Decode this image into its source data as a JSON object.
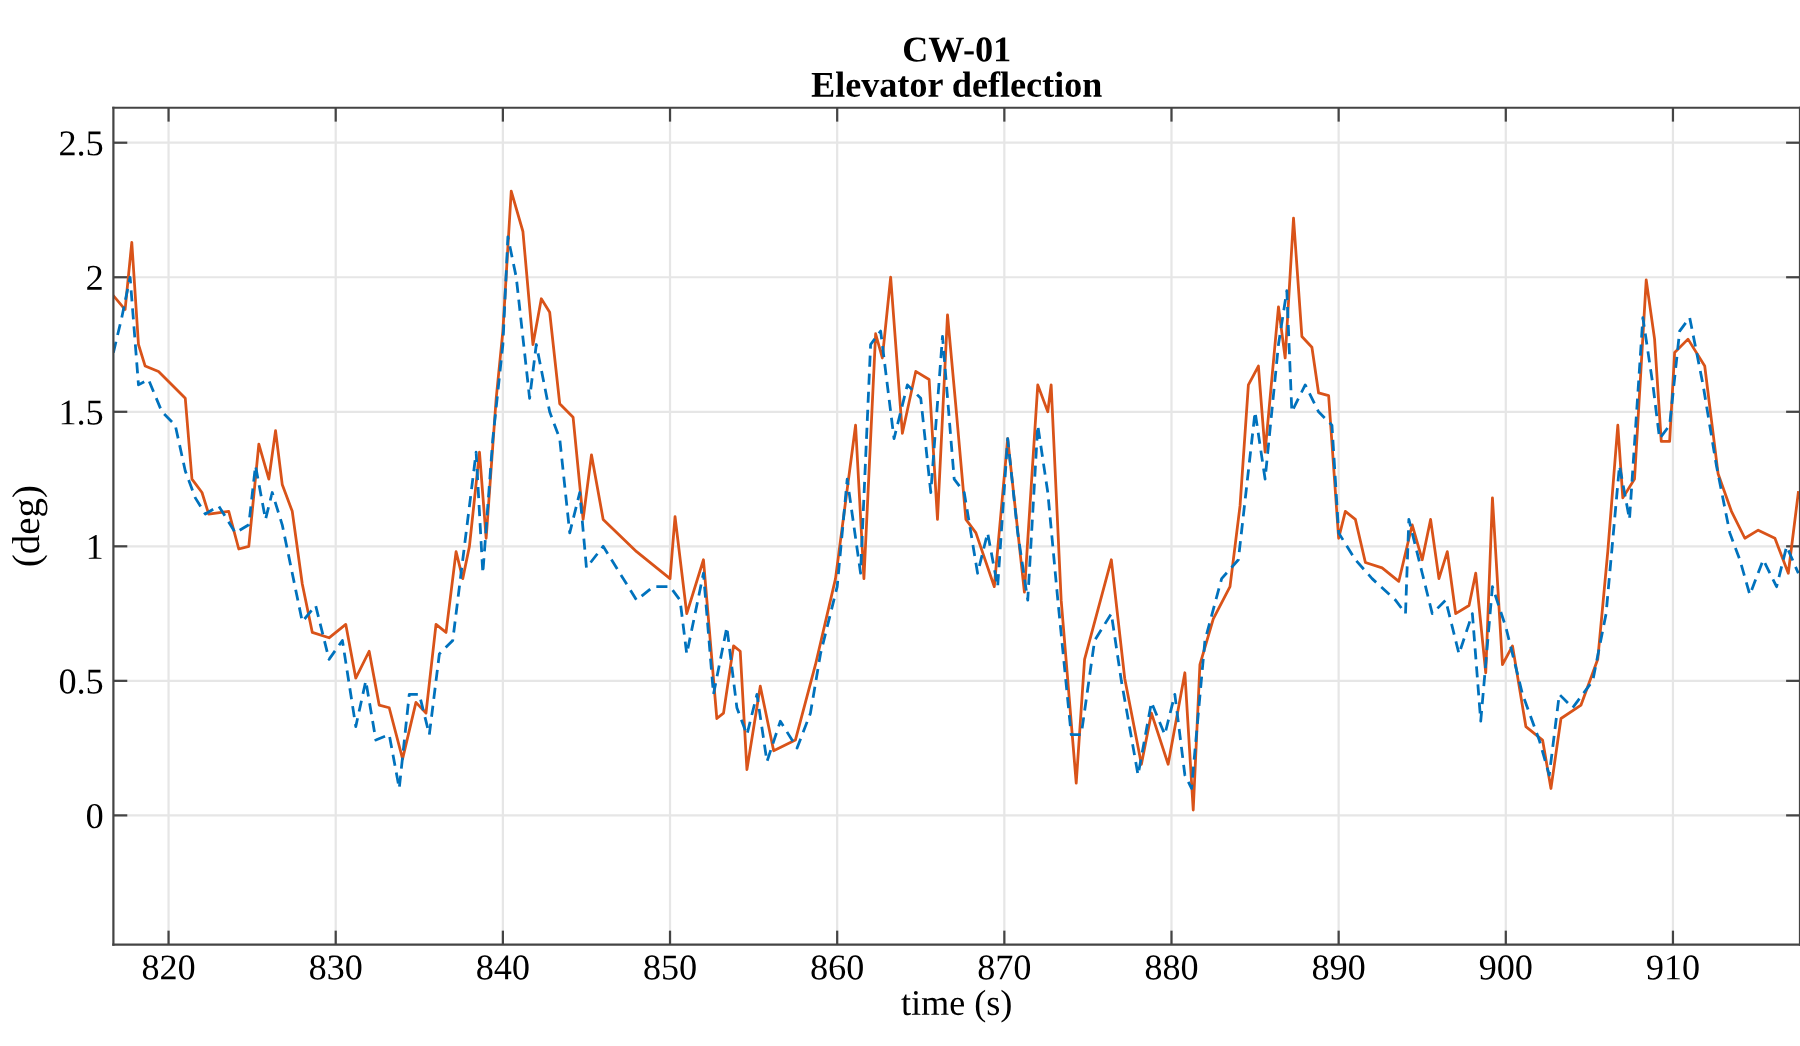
{
  "chart_data": {
    "type": "line",
    "title": "CW-01\nElevator deflection",
    "xlabel": "time (s)",
    "ylabel": "(deg)",
    "xlim": [
      816.7,
      917.6
    ],
    "ylim": [
      -0.48,
      2.63
    ],
    "xticks": [
      820,
      830,
      840,
      850,
      860,
      870,
      880,
      890,
      900,
      910
    ],
    "yticks": [
      0,
      0.5,
      1,
      1.5,
      2,
      2.5
    ],
    "grid": true,
    "legend": false,
    "series": [
      {
        "color": "#d95319",
        "line_style": "solid",
        "x": [
          816.72,
          817.4,
          817.8,
          818.2,
          818.6,
          819.4,
          821.0,
          821.4,
          822.0,
          822.4,
          823.6,
          824.2,
          824.8,
          825.4,
          826.0,
          826.4,
          826.8,
          827.4,
          828.0,
          828.6,
          829.6,
          830.6,
          831.2,
          832.0,
          832.6,
          833.2,
          834.0,
          834.8,
          835.4,
          836.0,
          836.6,
          837.2,
          837.6,
          838.0,
          838.6,
          839.0,
          839.6,
          840.0,
          840.5,
          841.2,
          841.8,
          842.3,
          842.8,
          843.4,
          844.2,
          844.8,
          845.3,
          846.0,
          848.0,
          850.0,
          850.3,
          851.0,
          852.0,
          852.8,
          853.2,
          853.8,
          854.2,
          854.6,
          855.4,
          856.2,
          857.5,
          858.7,
          859.9,
          861.1,
          861.6,
          862.3,
          862.7,
          863.2,
          863.9,
          864.7,
          865.5,
          866.0,
          866.6,
          867.1,
          867.7,
          868.3,
          869.4,
          870.2,
          871.2,
          872.0,
          872.6,
          872.8,
          873.4,
          874.3,
          874.8,
          876.4,
          877.2,
          878.2,
          878.8,
          879.8,
          880.8,
          881.3,
          881.7,
          882.5,
          883.5,
          884.1,
          884.6,
          885.2,
          885.6,
          886.4,
          886.8,
          887.3,
          887.8,
          888.4,
          888.8,
          889.4,
          890.0,
          890.4,
          891.0,
          891.6,
          892.6,
          893.6,
          894.4,
          895.0,
          895.5,
          896.0,
          896.5,
          897.0,
          897.8,
          898.2,
          898.8,
          899.2,
          899.8,
          900.4,
          901.2,
          902.2,
          902.7,
          903.3,
          904.5,
          905.5,
          906.1,
          906.7,
          907.0,
          907.7,
          908.4,
          908.9,
          909.3,
          909.8,
          910.1,
          910.9,
          911.9,
          912.7,
          913.5,
          914.3,
          915.1,
          916.1,
          916.9,
          917.5
        ],
        "values": [
          1.93,
          1.88,
          2.13,
          1.75,
          1.67,
          1.65,
          1.55,
          1.25,
          1.2,
          1.12,
          1.13,
          0.99,
          1.0,
          1.38,
          1.25,
          1.43,
          1.23,
          1.13,
          0.86,
          0.68,
          0.66,
          0.71,
          0.51,
          0.61,
          0.41,
          0.4,
          0.21,
          0.42,
          0.38,
          0.71,
          0.68,
          0.98,
          0.88,
          1.0,
          1.35,
          1.03,
          1.55,
          1.8,
          2.32,
          2.17,
          1.75,
          1.92,
          1.87,
          1.53,
          1.48,
          1.1,
          1.34,
          1.1,
          0.98,
          0.88,
          1.11,
          0.75,
          0.95,
          0.36,
          0.38,
          0.63,
          0.61,
          0.17,
          0.48,
          0.24,
          0.28,
          0.56,
          0.88,
          1.45,
          0.88,
          1.79,
          1.7,
          2.0,
          1.42,
          1.65,
          1.62,
          1.1,
          1.86,
          1.52,
          1.1,
          1.05,
          0.85,
          1.4,
          0.83,
          1.6,
          1.5,
          1.6,
          0.8,
          0.12,
          0.58,
          0.95,
          0.51,
          0.19,
          0.38,
          0.19,
          0.53,
          0.02,
          0.56,
          0.73,
          0.85,
          1.15,
          1.6,
          1.67,
          1.35,
          1.89,
          1.7,
          2.22,
          1.78,
          1.74,
          1.57,
          1.56,
          1.03,
          1.13,
          1.1,
          0.94,
          0.92,
          0.87,
          1.08,
          0.95,
          1.1,
          0.88,
          0.98,
          0.75,
          0.78,
          0.9,
          0.53,
          1.18,
          0.56,
          0.63,
          0.33,
          0.28,
          0.1,
          0.36,
          0.41,
          0.58,
          0.98,
          1.45,
          1.18,
          1.25,
          1.99,
          1.77,
          1.39,
          1.39,
          1.72,
          1.77,
          1.67,
          1.27,
          1.13,
          1.03,
          1.06,
          1.03,
          0.9,
          1.2
        ]
      },
      {
        "color": "#0072bd",
        "line_style": "dashed",
        "x": [
          816.7,
          817.2,
          817.7,
          818.2,
          818.8,
          819.6,
          820.4,
          821.0,
          821.6,
          822.2,
          823.0,
          824.0,
          824.8,
          825.2,
          825.8,
          826.2,
          826.8,
          827.4,
          828.0,
          828.8,
          829.6,
          830.4,
          831.2,
          831.8,
          832.4,
          833.2,
          833.8,
          834.4,
          835.0,
          835.6,
          836.2,
          837.0,
          837.6,
          838.4,
          838.8,
          839.4,
          840.0,
          840.3,
          840.8,
          841.6,
          842.0,
          842.8,
          843.4,
          844.0,
          844.6,
          845.0,
          846.0,
          847.0,
          848.0,
          849.0,
          850.0,
          850.6,
          851.0,
          852.0,
          852.6,
          853.4,
          854.0,
          854.6,
          855.2,
          855.8,
          856.6,
          857.6,
          858.4,
          859.0,
          860.0,
          860.6,
          861.4,
          862.0,
          862.6,
          863.4,
          864.2,
          865.0,
          865.6,
          866.3,
          867.0,
          867.6,
          868.4,
          869.0,
          869.6,
          870.2,
          870.8,
          871.4,
          872.0,
          872.6,
          873.2,
          874.0,
          874.6,
          875.4,
          876.4,
          877.0,
          878.0,
          878.8,
          879.6,
          880.2,
          880.8,
          881.2,
          882.0,
          883.0,
          884.0,
          885.0,
          885.6,
          886.4,
          886.9,
          887.2,
          888.0,
          888.8,
          889.6,
          890.0,
          891.0,
          892.0,
          893.4,
          894.0,
          894.2,
          895.0,
          895.6,
          896.4,
          897.2,
          898.0,
          898.5,
          899.2,
          900.0,
          901.0,
          902.0,
          902.6,
          903.2,
          904.0,
          905.2,
          906.0,
          906.8,
          907.4,
          908.2,
          908.8,
          909.2,
          909.8,
          910.4,
          911.0,
          911.8,
          912.6,
          913.4,
          914.0,
          914.6,
          915.4,
          916.2,
          916.8,
          917.5
        ],
        "values": [
          1.72,
          1.85,
          2.0,
          1.6,
          1.62,
          1.5,
          1.45,
          1.28,
          1.18,
          1.12,
          1.15,
          1.05,
          1.08,
          1.3,
          1.1,
          1.2,
          1.08,
          0.9,
          0.72,
          0.78,
          0.58,
          0.65,
          0.33,
          0.5,
          0.28,
          0.3,
          0.1,
          0.45,
          0.45,
          0.3,
          0.6,
          0.65,
          0.95,
          1.35,
          0.9,
          1.4,
          1.75,
          2.15,
          2.0,
          1.55,
          1.75,
          1.5,
          1.4,
          1.05,
          1.2,
          0.92,
          1.0,
          0.9,
          0.8,
          0.85,
          0.85,
          0.8,
          0.6,
          0.9,
          0.45,
          0.7,
          0.4,
          0.3,
          0.45,
          0.2,
          0.35,
          0.25,
          0.38,
          0.6,
          0.85,
          1.25,
          0.9,
          1.75,
          1.8,
          1.4,
          1.6,
          1.55,
          1.2,
          1.78,
          1.25,
          1.2,
          0.9,
          1.05,
          0.85,
          1.4,
          1.05,
          0.8,
          1.45,
          1.2,
          0.8,
          0.3,
          0.3,
          0.65,
          0.75,
          0.5,
          0.15,
          0.42,
          0.3,
          0.45,
          0.15,
          0.1,
          0.65,
          0.88,
          0.95,
          1.5,
          1.25,
          1.75,
          1.95,
          1.5,
          1.6,
          1.5,
          1.45,
          1.05,
          0.95,
          0.88,
          0.8,
          0.75,
          1.1,
          0.9,
          0.75,
          0.8,
          0.6,
          0.75,
          0.35,
          0.85,
          0.7,
          0.45,
          0.28,
          0.15,
          0.45,
          0.4,
          0.5,
          0.75,
          1.3,
          1.1,
          1.85,
          1.6,
          1.4,
          1.45,
          1.8,
          1.85,
          1.6,
          1.3,
          1.05,
          0.95,
          0.82,
          0.95,
          0.85,
          1.0,
          0.9
        ]
      }
    ]
  }
}
